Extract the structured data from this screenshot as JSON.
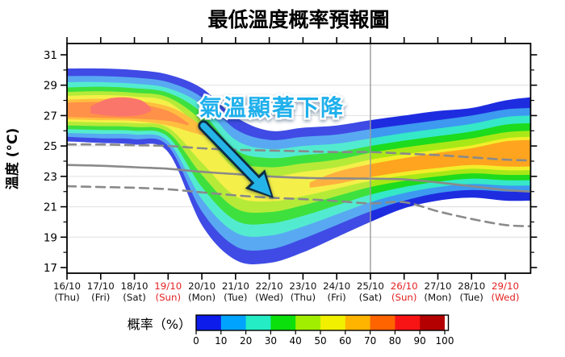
{
  "title": "最低溫度概率預報圖",
  "y_axis": {
    "label": "溫度 (°C)",
    "major_ticks": [
      31,
      29,
      27,
      25,
      23,
      21,
      19,
      17
    ],
    "minor_ticks": [
      30,
      28,
      26,
      24,
      22,
      20,
      18
    ]
  },
  "x_axis": {
    "labels": [
      {
        "date": "16/10",
        "weekday": "(Thu)",
        "highlight": false
      },
      {
        "date": "17/10",
        "weekday": "(Fri)",
        "highlight": false
      },
      {
        "date": "18/10",
        "weekday": "(Sat)",
        "highlight": false
      },
      {
        "date": "19/10",
        "weekday": "(Sun)",
        "highlight": true
      },
      {
        "date": "20/10",
        "weekday": "(Mon)",
        "highlight": false
      },
      {
        "date": "21/10",
        "weekday": "(Tue)",
        "highlight": false
      },
      {
        "date": "22/10",
        "weekday": "(Wed)",
        "highlight": false
      },
      {
        "date": "23/10",
        "weekday": "(Thu)",
        "highlight": false
      },
      {
        "date": "24/10",
        "weekday": "(Fri)",
        "highlight": false
      },
      {
        "date": "25/10",
        "weekday": "(Sat)",
        "highlight": false
      },
      {
        "date": "26/10",
        "weekday": "(Sun)",
        "highlight": true
      },
      {
        "date": "27/10",
        "weekday": "(Mon)",
        "highlight": false
      },
      {
        "date": "28/10",
        "weekday": "(Tue)",
        "highlight": false
      },
      {
        "date": "29/10",
        "weekday": "(Wed)",
        "highlight": true
      }
    ]
  },
  "colorbar": {
    "label": "概率（%）",
    "tick_labels": [
      0,
      10,
      20,
      30,
      40,
      50,
      60,
      70,
      80,
      90,
      100
    ],
    "segment_colors": [
      "#0d1ceb",
      "#00a4ff",
      "#24ecc4",
      "#0ce00c",
      "#a2ee00",
      "#f0f000",
      "#ffb400",
      "#ff6400",
      "#f81414",
      "#b40000"
    ]
  },
  "colors": {
    "axis": "#000000",
    "grid": "#dcdcdc",
    "reference_line": "#8a8a8a",
    "holiday_label": "#e32222",
    "normal_label": "#111111",
    "divider_line": "#9a9a9a",
    "annotation": "#1fb0ec"
  },
  "chart_data": {
    "type": "area",
    "x_unit": "days_from_16_Oct",
    "x_range": [
      0,
      13.75
    ],
    "y_range": [
      16.6,
      31.7
    ],
    "day_grid": [
      0,
      1,
      2,
      3,
      4,
      5,
      6,
      7,
      8,
      9,
      10,
      11,
      12,
      13,
      13.75
    ],
    "probability_bands": [
      {
        "range": "0-10",
        "color": "#1e2ce0",
        "upper": [
          30.1,
          30.1,
          30.0,
          29.7,
          28.8,
          26.9,
          26.0,
          26.2,
          26.35,
          26.7,
          27.0,
          27.3,
          27.5,
          28.0,
          28.2
        ],
        "lower": [
          25.3,
          25.2,
          25.1,
          24.6,
          19.8,
          17.5,
          17.3,
          18.0,
          19.0,
          20.0,
          20.9,
          21.4,
          21.6,
          21.4,
          21.4
        ]
      },
      {
        "range": "10-20",
        "color": "#3d9af0",
        "upper": [
          29.6,
          29.6,
          29.5,
          29.2,
          28.2,
          26.1,
          25.4,
          25.6,
          25.75,
          26.1,
          26.4,
          26.7,
          27.0,
          27.4,
          27.5
        ],
        "lower": [
          25.6,
          25.5,
          25.45,
          25.0,
          20.7,
          18.4,
          18.2,
          18.9,
          19.8,
          20.7,
          21.4,
          21.9,
          22.1,
          22.0,
          22.0
        ]
      },
      {
        "range": "20-30",
        "color": "#35e8c8",
        "upper": [
          29.2,
          29.2,
          29.1,
          28.8,
          27.7,
          25.4,
          24.8,
          25.0,
          25.15,
          25.5,
          25.85,
          26.15,
          26.45,
          26.9,
          27.0
        ],
        "lower": [
          25.85,
          25.8,
          25.75,
          25.3,
          21.5,
          19.3,
          19.1,
          19.7,
          20.5,
          21.3,
          21.9,
          22.3,
          22.5,
          22.4,
          22.4
        ]
      },
      {
        "range": "30-40",
        "color": "#1ddb1d",
        "upper": [
          28.85,
          28.9,
          28.8,
          28.5,
          27.2,
          24.75,
          24.2,
          24.4,
          24.6,
          25.0,
          25.35,
          25.65,
          25.95,
          26.4,
          26.5
        ],
        "lower": [
          26.1,
          26.05,
          26.0,
          25.6,
          22.3,
          20.1,
          19.9,
          20.4,
          21.1,
          21.8,
          22.3,
          22.65,
          22.85,
          22.75,
          22.75
        ]
      },
      {
        "range": "40-50",
        "color": "#a8e816",
        "upper": [
          28.55,
          28.6,
          28.5,
          28.2,
          26.65,
          24.1,
          23.6,
          23.85,
          24.1,
          24.55,
          24.9,
          25.2,
          25.5,
          25.9,
          26.0
        ],
        "lower": [
          26.35,
          26.3,
          26.25,
          25.9,
          23.1,
          20.9,
          20.65,
          21.1,
          21.7,
          22.3,
          22.7,
          23.0,
          23.2,
          23.1,
          23.1
        ]
      },
      {
        "range": "50-60",
        "color": "#f2ee2a",
        "upper": [
          28.3,
          28.35,
          28.25,
          27.9,
          26.0,
          23.45,
          23.0,
          23.3,
          23.6,
          24.1,
          24.45,
          24.75,
          25.05,
          25.5,
          25.6
        ],
        "lower": [
          26.6,
          26.55,
          26.5,
          26.2,
          23.9,
          21.7,
          21.35,
          21.7,
          22.2,
          22.7,
          23.05,
          23.3,
          23.5,
          23.4,
          23.4
        ]
      },
      {
        "range": "60-70",
        "color": "#ffb31e",
        "days": [
          0,
          1,
          2,
          3,
          3.7,
          4.3
        ],
        "upper": [
          28.05,
          28.1,
          28.0,
          27.6,
          26.8,
          25.7
        ],
        "lower": [
          26.75,
          26.7,
          26.65,
          26.35,
          25.9,
          25.55
        ]
      },
      {
        "range": "60-70",
        "color": "#ffa41e",
        "days": [
          7.2,
          8,
          9,
          10,
          11,
          12,
          13,
          13.75
        ],
        "upper": [
          22.6,
          23.3,
          23.8,
          24.2,
          24.55,
          24.85,
          25.3,
          25.4
        ],
        "lower": [
          22.25,
          22.5,
          22.95,
          23.3,
          23.55,
          23.75,
          23.65,
          23.65
        ]
      },
      {
        "range": "70-80",
        "color": "#ff7e28",
        "days": [
          0,
          1,
          2,
          3,
          3.6
        ],
        "upper": [
          27.85,
          27.9,
          27.8,
          27.3,
          26.5
        ],
        "lower": [
          26.9,
          26.85,
          26.8,
          26.65,
          26.35
        ]
      },
      {
        "range": "80-90",
        "color": "#fa5f50",
        "days": [
          0.7,
          1.2,
          1.7,
          2.2,
          2.5
        ],
        "upper": [
          27.6,
          28.1,
          28.2,
          28.0,
          27.5
        ],
        "lower": [
          27.15,
          27.0,
          26.95,
          27.05,
          27.3
        ]
      }
    ],
    "reference_lines": [
      {
        "name": "upper-normal-dashed",
        "style": "dashed",
        "values": [
          25.1,
          25.1,
          25.05,
          25.0,
          24.85,
          24.75,
          24.7,
          24.65,
          24.6,
          24.6,
          24.5,
          24.4,
          24.25,
          24.1,
          24.05
        ]
      },
      {
        "name": "normal-mean-solid",
        "style": "solid",
        "values": [
          23.75,
          23.7,
          23.6,
          23.5,
          23.3,
          23.15,
          23.0,
          22.9,
          22.87,
          22.85,
          22.8,
          22.6,
          22.35,
          22.1,
          22.0
        ]
      },
      {
        "name": "lower-normal-dashed",
        "style": "dashed",
        "values": [
          22.35,
          22.3,
          22.25,
          22.15,
          21.95,
          21.75,
          21.6,
          21.5,
          21.38,
          21.22,
          21.3,
          20.7,
          20.2,
          19.8,
          19.72
        ]
      }
    ],
    "divider_day": 9,
    "annotation": {
      "text": "氣溫顯著下降",
      "anchor_day": 6.1,
      "anchor_temp": 27.6,
      "arrow": {
        "from_day": 4.05,
        "from_temp": 26.33,
        "to_day": 6.06,
        "to_temp": 21.72
      }
    }
  }
}
